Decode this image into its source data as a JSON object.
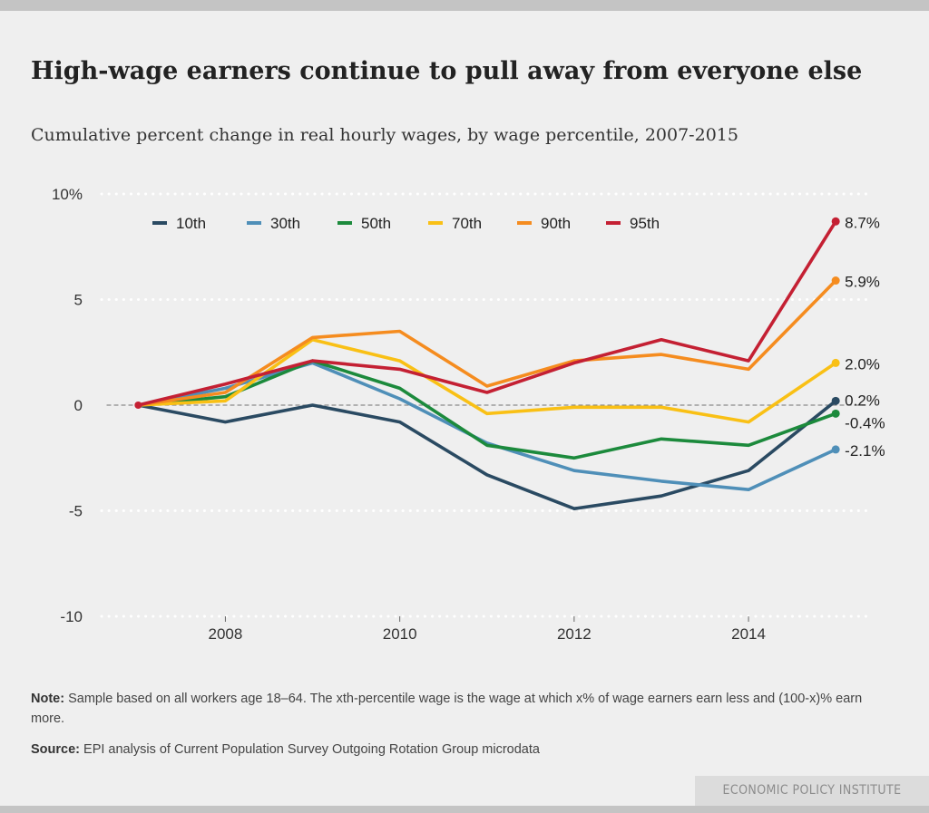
{
  "title": "High-wage earners continue to pull away from everyone else",
  "subtitle": "Cumulative percent change in real hourly wages, by wage percentile, 2007-2015",
  "note_label": "Note:",
  "note_text": "Sample based on all workers age 18–64. The xth-percentile wage is the wage at which x% of wage earners earn less and (100-x)% earn more.",
  "source_label": "Source:",
  "source_text": "EPI analysis of Current Population Survey Outgoing Rotation Group microdata",
  "brand": "ECONOMIC POLICY INSTITUTE",
  "chart_data": {
    "type": "line",
    "x": [
      2007,
      2008,
      2009,
      2010,
      2011,
      2012,
      2013,
      2014,
      2015
    ],
    "xlim": [
      2006.06,
      2015.3
    ],
    "ylim": [
      -10,
      10
    ],
    "yticks": [
      10,
      5,
      0,
      -5,
      -10
    ],
    "ytick_labels": [
      "10%",
      "5",
      "0",
      "-5",
      "-10"
    ],
    "xticks": [
      2008,
      2010,
      2012,
      2014
    ],
    "xtick_labels": [
      "2008",
      "2010",
      "2012",
      "2014"
    ],
    "grid": "horizontal dotted",
    "legend": "top-left",
    "series": [
      {
        "name": "10th",
        "color": "#2a4a62",
        "values": [
          0,
          -0.8,
          0,
          -0.8,
          -3.3,
          -4.9,
          -4.3,
          -3.1,
          0.2
        ],
        "end_label": "0.2%"
      },
      {
        "name": "30th",
        "color": "#4f8fb8",
        "values": [
          0,
          0.8,
          2.0,
          0.3,
          -1.8,
          -3.1,
          -3.6,
          -4.0,
          -2.1
        ],
        "end_label": "-2.1%"
      },
      {
        "name": "50th",
        "color": "#1c8a3c",
        "values": [
          0,
          0.4,
          2.1,
          0.8,
          -1.9,
          -2.5,
          -1.6,
          -1.9,
          -0.4
        ],
        "end_label": "-0.4%"
      },
      {
        "name": "70th",
        "color": "#f9c015",
        "values": [
          0,
          0.2,
          3.1,
          2.1,
          -0.4,
          -0.1,
          -0.1,
          -0.8,
          2.0
        ],
        "end_label": "2.0%"
      },
      {
        "name": "90th",
        "color": "#f58c1f",
        "values": [
          0,
          0.6,
          3.2,
          3.5,
          0.9,
          2.1,
          2.4,
          1.7,
          5.9
        ],
        "end_label": "5.9%"
      },
      {
        "name": "95th",
        "color": "#c42033",
        "values": [
          0,
          1.0,
          2.1,
          1.7,
          0.6,
          2.0,
          3.1,
          2.1,
          8.7
        ],
        "end_label": "8.7%"
      }
    ]
  }
}
